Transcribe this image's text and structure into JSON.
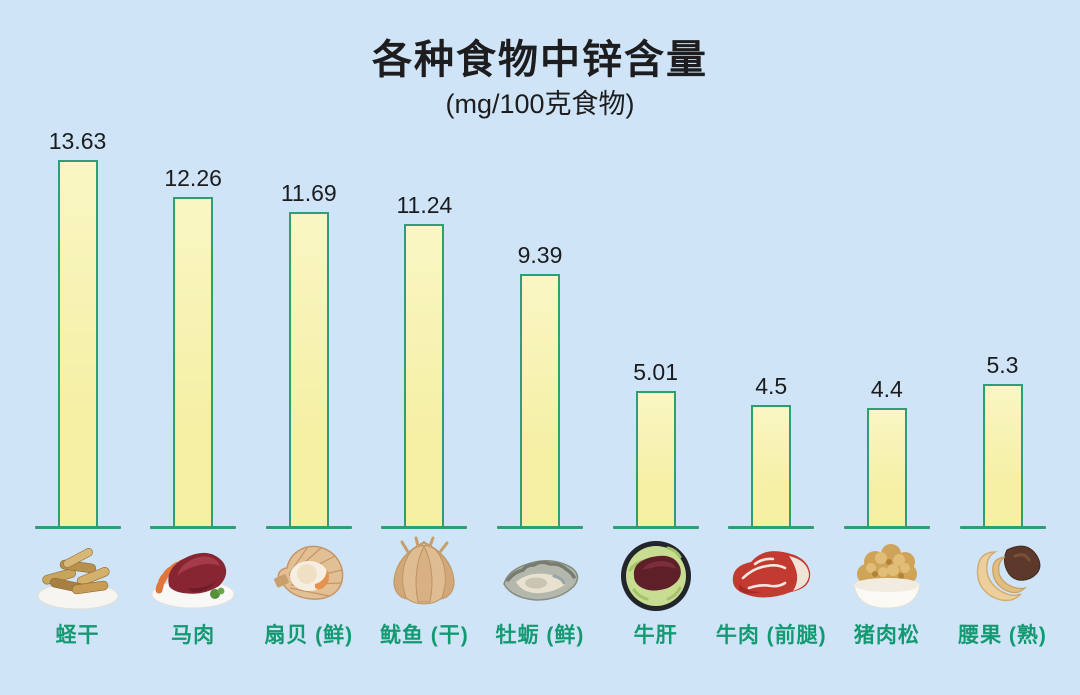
{
  "title": "各种食物中锌含量",
  "subtitle": "(mg/100克食物)",
  "chart_data": {
    "type": "bar",
    "title": "各种食物中锌含量",
    "subtitle": "(mg/100克食物)",
    "unit": "mg/100克食物",
    "categories": [
      "蛏干",
      "马肉",
      "扇贝 (鲜)",
      "鱿鱼 (干)",
      "牡蛎 (鲜)",
      "牛肝",
      "牛肉 (前腿)",
      "猪肉松",
      "腰果 (熟)"
    ],
    "values": [
      13.63,
      12.26,
      11.69,
      11.24,
      9.39,
      5.01,
      4.5,
      4.4,
      5.3
    ],
    "data_labels": [
      "13.63",
      "12.26",
      "11.69",
      "11.24",
      "9.39",
      "5.01",
      "4.5",
      "4.4",
      "5.3"
    ],
    "xlabel": "",
    "ylabel": "",
    "ylim": [
      0,
      14
    ],
    "grid": false,
    "legend": false,
    "bar_color": "#f5f0a4",
    "bar_border_color": "#2f9e74"
  },
  "food_icons": [
    "dried-razor-clams-icon",
    "horse-meat-icon",
    "scallop-icon",
    "dried-squid-icon",
    "oyster-icon",
    "beef-liver-icon",
    "beef-steak-icon",
    "pork-floss-icon",
    "cashew-icon"
  ],
  "colors": {
    "background": "#cfe4f6",
    "bar_fill": "#f5f0a4",
    "bar_border": "#2f9e74",
    "label_text": "#149a72",
    "title_text": "#1d1d1f"
  }
}
